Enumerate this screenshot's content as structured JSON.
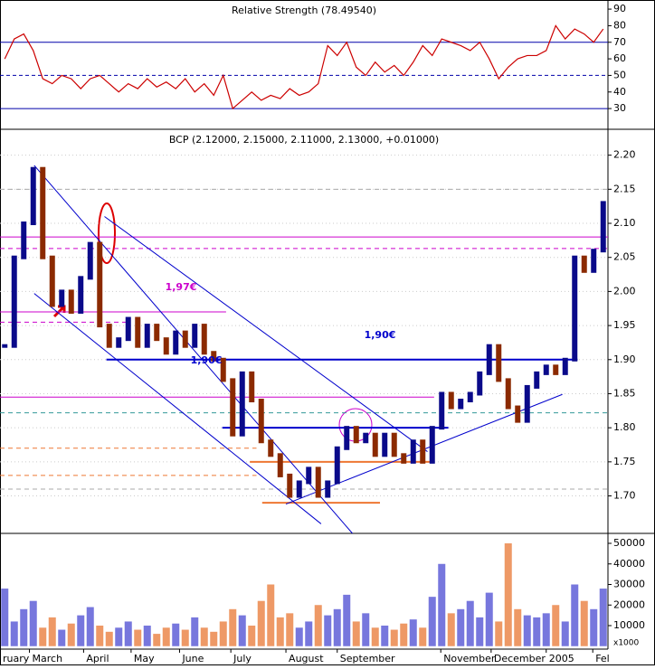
{
  "chart_data": [
    {
      "type": "line",
      "title": "Relative Strength (78.49540)",
      "color": "#cc0000",
      "values": [
        60,
        72,
        75,
        65,
        48,
        45,
        50,
        48,
        42,
        48,
        50,
        45,
        40,
        45,
        42,
        48,
        43,
        46,
        42,
        48,
        40,
        45,
        38,
        50,
        30,
        35,
        40,
        35,
        38,
        36,
        42,
        38,
        40,
        45,
        68,
        62,
        70,
        55,
        50,
        58,
        52,
        56,
        50,
        58,
        68,
        62,
        72,
        70,
        68,
        65,
        70,
        60,
        48,
        55,
        60,
        62,
        62,
        65,
        80,
        72,
        78,
        75,
        70,
        78
      ],
      "xlim": [
        0,
        64
      ],
      "ylim": [
        17.5,
        95.5
      ],
      "yticks": [
        30,
        40,
        50,
        60,
        70,
        80,
        90
      ],
      "levels": [
        {
          "value": 70,
          "color": "#0000aa",
          "dash": false
        },
        {
          "value": 50,
          "color": "#0000aa",
          "dash": true
        },
        {
          "value": 30,
          "color": "#0000aa",
          "dash": false
        }
      ]
    },
    {
      "type": "price",
      "title": "BCP (2.12000, 2.15000, 2.11000, 2.13000, +0.01000)",
      "up_color": "#0a0a8a",
      "down_color": "#8b2a00",
      "values": [
        1.92,
        2.05,
        2.1,
        2.18,
        2.05,
        1.98,
        2.0,
        1.97,
        2.02,
        2.07,
        1.95,
        1.92,
        1.93,
        1.96,
        1.92,
        1.95,
        1.93,
        1.91,
        1.94,
        1.92,
        1.95,
        1.91,
        1.9,
        1.87,
        1.79,
        1.88,
        1.84,
        1.78,
        1.76,
        1.73,
        1.7,
        1.72,
        1.74,
        1.7,
        1.72,
        1.77,
        1.8,
        1.78,
        1.79,
        1.76,
        1.79,
        1.76,
        1.75,
        1.78,
        1.75,
        1.8,
        1.85,
        1.83,
        1.84,
        1.85,
        1.88,
        1.92,
        1.87,
        1.83,
        1.81,
        1.86,
        1.88,
        1.89,
        1.88,
        1.9,
        2.05,
        2.03,
        2.06,
        2.13
      ],
      "xlim": [
        0,
        64
      ],
      "ylim": [
        1.645,
        2.238
      ],
      "yticks": [
        {
          "value": 1.7,
          "label": "1.70"
        },
        1.75,
        {
          "value": 1.8,
          "label": "1.80"
        },
        1.85,
        {
          "value": 1.9,
          "label": "1.90"
        },
        1.95,
        {
          "value": 2.0,
          "label": "2.00"
        },
        2.05,
        {
          "value": 2.1,
          "label": "2.10"
        },
        2.15,
        {
          "value": 2.2,
          "label": "2.20"
        }
      ],
      "grid": true,
      "segments": [
        {
          "x": [
            0,
            64
          ],
          "y": [
            2.15,
            2.15
          ],
          "color": "#aaaaaa",
          "dash": true
        },
        {
          "x": [
            0,
            64
          ],
          "y": [
            2.08,
            2.08
          ],
          "color": "#cc00cc",
          "dash": false
        },
        {
          "x": [
            0,
            64
          ],
          "y": [
            2.063,
            2.063
          ],
          "color": "#cc00cc",
          "dash": true
        },
        {
          "x": [
            0,
            23.8
          ],
          "y": [
            1.97,
            1.97
          ],
          "color": "#cc00cc",
          "dash": false
        },
        {
          "x": [
            0,
            13.3
          ],
          "y": [
            1.955,
            1.955
          ],
          "color": "#cc00cc",
          "dash": true
        },
        {
          "x": [
            0,
            45.7
          ],
          "y": [
            1.845,
            1.845
          ],
          "color": "#cc00cc",
          "dash": false
        },
        {
          "x": [
            0,
            64
          ],
          "y": [
            1.822,
            1.822
          ],
          "color": "#339999",
          "dash": true
        },
        {
          "x": [
            0,
            27
          ],
          "y": [
            1.77,
            1.77
          ],
          "color": "#ee7733",
          "dash": true
        },
        {
          "x": [
            0,
            27
          ],
          "y": [
            1.73,
            1.73
          ],
          "color": "#ee7733",
          "dash": true
        },
        {
          "x": [
            0,
            64
          ],
          "y": [
            1.71,
            1.71
          ],
          "color": "#aaaaaa",
          "dash": true
        },
        {
          "x": [
            11.2,
            60.8
          ],
          "y": [
            1.9,
            1.9
          ],
          "color": "#0000cc",
          "dash": false,
          "width": 2
        },
        {
          "x": [
            23.4,
            47.2
          ],
          "y": [
            1.8,
            1.8
          ],
          "color": "#0000cc",
          "dash": false,
          "width": 2
        },
        {
          "x": [
            26.3,
            45.3
          ],
          "y": [
            1.75,
            1.75
          ],
          "color": "#ee7733",
          "dash": false,
          "width": 2
        },
        {
          "x": [
            27.6,
            40
          ],
          "y": [
            1.69,
            1.69
          ],
          "color": "#ee7733",
          "dash": false,
          "width": 2
        },
        {
          "x": [
            3.6,
            37.1
          ],
          "y": [
            2.185,
            1.645
          ],
          "color": "#0000cc",
          "dash": false
        },
        {
          "x": [
            3.6,
            33.8
          ],
          "y": [
            1.997,
            1.659
          ],
          "color": "#0000cc",
          "dash": false
        },
        {
          "x": [
            11,
            45
          ],
          "y": [
            2.11,
            1.765
          ],
          "color": "#0000cc",
          "dash": false
        },
        {
          "x": [
            30.1,
            59.2
          ],
          "y": [
            1.688,
            1.849
          ],
          "color": "#0000cc",
          "dash": false
        }
      ],
      "annotations": [
        "1,97€",
        "1,90€",
        "1,90€"
      ]
    },
    {
      "type": "bar",
      "up_color": "#7777dd",
      "down_color": "#ee9966",
      "values": [
        28000,
        12000,
        18000,
        22000,
        9000,
        14000,
        8000,
        11000,
        15000,
        19000,
        10000,
        7000,
        9000,
        12000,
        8000,
        10000,
        6000,
        9000,
        11000,
        8000,
        14000,
        9000,
        7000,
        12000,
        18000,
        15000,
        10000,
        22000,
        30000,
        14000,
        16000,
        9000,
        12000,
        20000,
        15000,
        18000,
        25000,
        12000,
        16000,
        9000,
        10000,
        8000,
        11000,
        13000,
        9000,
        24000,
        40000,
        16000,
        18000,
        22000,
        14000,
        26000,
        12000,
        50000,
        18000,
        15000,
        14000,
        16000,
        20000,
        12000,
        30000,
        22000,
        18000,
        28000
      ],
      "xlim": [
        0,
        64
      ],
      "ylim": [
        -1430,
        54840
      ],
      "yticks": [
        10000,
        20000,
        30000,
        40000,
        50000
      ],
      "unit": "x1000",
      "xticks": [
        {
          "value": 0,
          "label": "ruary"
        },
        {
          "value": 3.1,
          "label": "March"
        },
        {
          "value": 8.8,
          "label": "April"
        },
        {
          "value": 13.8,
          "label": "May"
        },
        {
          "value": 18.9,
          "label": "June"
        },
        {
          "value": 24.3,
          "label": "July"
        },
        {
          "value": 30.1,
          "label": "August"
        },
        {
          "value": 35.5,
          "label": "September"
        },
        {
          "value": 46.4,
          "label": "November"
        },
        {
          "value": 51.7,
          "label": "December"
        },
        {
          "value": 57.5,
          "label": "2005"
        },
        {
          "value": 62.4,
          "label": "Fel"
        }
      ]
    }
  ]
}
